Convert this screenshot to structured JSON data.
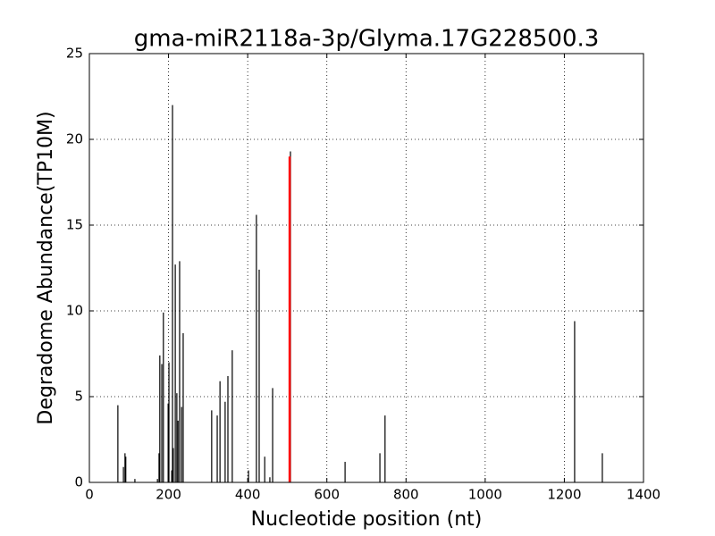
{
  "chart_data": {
    "type": "stem",
    "title": "gma-miR2118a-3p/Glyma.17G228500.3",
    "x_label": "Nucleotide position (nt)",
    "y_label": "Degradome Abundance(TP10M)",
    "xlim": [
      0,
      1400
    ],
    "xticks": [
      0,
      200,
      400,
      600,
      800,
      1000,
      1200,
      1400
    ],
    "ylim": [
      0,
      25
    ],
    "yticks": [
      0,
      5,
      10,
      15,
      20,
      25
    ],
    "grid": true,
    "series": [
      {
        "color": "#000000",
        "x": [
          72,
          86,
          90,
          92,
          115,
          172,
          176,
          178,
          183,
          187,
          199,
          201,
          208,
          210,
          212,
          217,
          221,
          224,
          228,
          233,
          237,
          309,
          323,
          330,
          343,
          350,
          361,
          402,
          422,
          429,
          443,
          456,
          463,
          508,
          646,
          734,
          747,
          1226,
          1296
        ],
        "values": [
          4.5,
          0.9,
          1.7,
          1.5,
          0.2,
          0.2,
          1.7,
          7.4,
          6.9,
          9.9,
          4.6,
          7.0,
          0.7,
          22.0,
          2.0,
          12.7,
          5.2,
          3.6,
          12.9,
          4.4,
          8.7,
          4.2,
          3.9,
          5.9,
          4.7,
          6.2,
          7.7,
          0.7,
          15.6,
          12.4,
          1.5,
          0.3,
          5.5,
          19.3,
          1.2,
          1.7,
          3.9,
          9.4,
          1.7
        ]
      },
      {
        "color": "#ff0000",
        "x": [
          506
        ],
        "values": [
          19.0
        ]
      }
    ]
  }
}
